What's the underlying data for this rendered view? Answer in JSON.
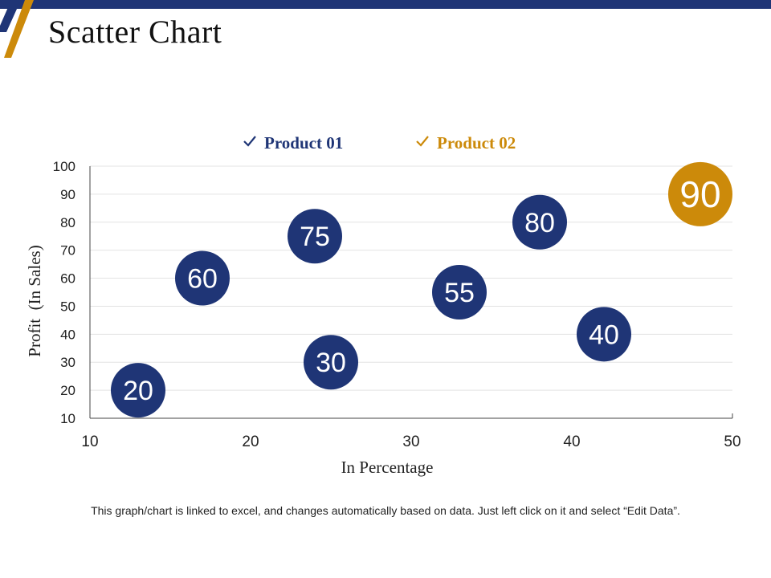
{
  "title": "Scatter Chart",
  "footnote": "This graph/chart is linked to excel, and changes automatically based on data. Just left click on it and select “Edit Data”.",
  "colors": {
    "top_bar": "#1f3576",
    "product_01": "#1f3576",
    "product_02": "#cc8a0a",
    "check_01": "#1f3576",
    "check_02": "#cc8a0a"
  },
  "chart_data": {
    "type": "scatter",
    "xlabel": "In Percentage",
    "ylabel": "Profit  (In Sales)",
    "xlim": [
      10,
      50
    ],
    "ylim": [
      10,
      100
    ],
    "x_ticks": [
      10,
      20,
      30,
      40,
      50
    ],
    "y_ticks": [
      10,
      20,
      30,
      40,
      50,
      60,
      70,
      80,
      90,
      100
    ],
    "grid": true,
    "legend_position": "top",
    "series": [
      {
        "name": "Product 01",
        "color": "#1f3576",
        "points": [
          {
            "x": 13,
            "y": 20,
            "label": "20"
          },
          {
            "x": 17,
            "y": 60,
            "label": "60"
          },
          {
            "x": 24,
            "y": 75,
            "label": "75"
          },
          {
            "x": 25,
            "y": 30,
            "label": "30"
          },
          {
            "x": 33,
            "y": 55,
            "label": "55"
          },
          {
            "x": 38,
            "y": 80,
            "label": "80"
          },
          {
            "x": 42,
            "y": 40,
            "label": "40"
          }
        ]
      },
      {
        "name": "Product 02",
        "color": "#cc8a0a",
        "points": [
          {
            "x": 48,
            "y": 90,
            "label": "90"
          }
        ]
      }
    ]
  }
}
